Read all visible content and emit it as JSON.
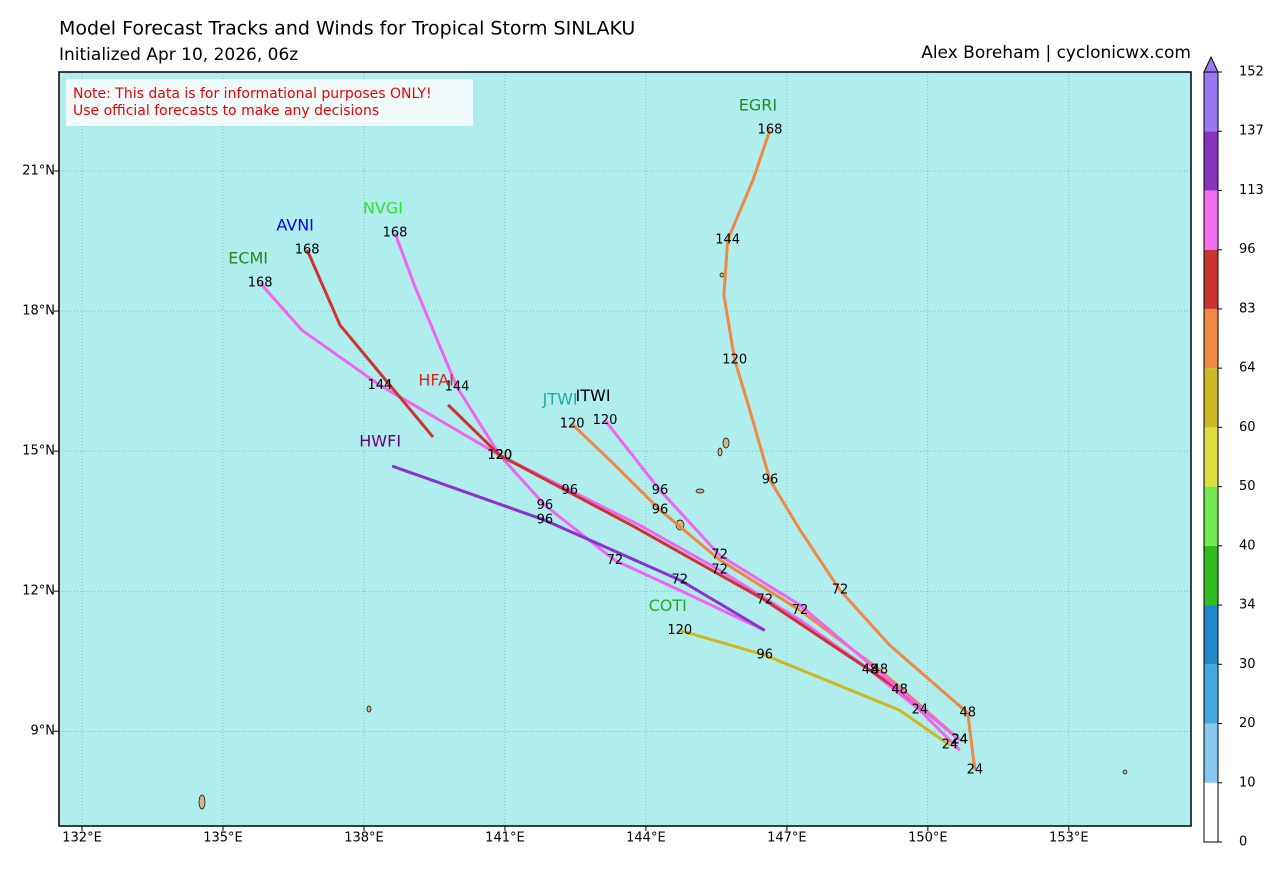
{
  "header": {
    "title": "Model Forecast Tracks and Winds for Tropical Storm SINLAKU",
    "subtitle": "Initialized Apr 10, 2026, 06z",
    "credit": "Alex Boreham | cyclonicwx.com"
  },
  "note": [
    "Note: This data is for informational purposes ONLY!",
    "Use official forecasts to make any decisions"
  ],
  "map": {
    "xlim": [
      131.51,
      155.6
    ],
    "ylim": [
      6.97,
      23.12
    ],
    "xticks": [
      {
        "value": 132,
        "label": "132°E"
      },
      {
        "value": 135,
        "label": "135°E"
      },
      {
        "value": 138,
        "label": "138°E"
      },
      {
        "value": 141,
        "label": "141°E"
      },
      {
        "value": 144,
        "label": "144°E"
      },
      {
        "value": 147,
        "label": "147°E"
      },
      {
        "value": 150,
        "label": "150°E"
      },
      {
        "value": 153,
        "label": "153°E"
      }
    ],
    "yticks": [
      {
        "value": 9,
        "label": "9°N"
      },
      {
        "value": 12,
        "label": "12°N"
      },
      {
        "value": 15,
        "label": "15°N"
      },
      {
        "value": 18,
        "label": "18°N"
      },
      {
        "value": 21,
        "label": "21°N"
      }
    ],
    "tracks": [
      {
        "name": "ECMI",
        "label_color": "#228822",
        "color": "#ee66ee",
        "lon": [
          135.79,
          136.68,
          138.34,
          140.89,
          142.38,
          143.87,
          145.57,
          147.28,
          148.77,
          149.83,
          150.68
        ],
        "lat": [
          18.6,
          17.59,
          16.41,
          14.91,
          14.16,
          13.41,
          12.45,
          11.38,
          10.31,
          9.45,
          8.59
        ],
        "hours": [
          168,
          null,
          144,
          120,
          96,
          null,
          72,
          null,
          48,
          24,
          null
        ]
      },
      {
        "name": "AVNI",
        "label_color": "#0000ee",
        "color": "#cc3333",
        "lon": [
          136.79,
          137.49,
          139.47
        ],
        "lat": [
          19.31,
          17.7,
          15.3
        ],
        "hours": [
          168,
          null,
          null
        ]
      },
      {
        "name": "NVGI",
        "label_color": "#33dd33",
        "color": "#ee66ee",
        "lon": [
          138.66,
          139.09,
          139.98,
          140.89,
          141.85,
          143.34,
          144.72,
          146.53
        ],
        "lat": [
          19.67,
          18.51,
          16.37,
          14.91,
          13.84,
          12.66,
          12.02,
          11.16
        ],
        "hours": [
          168,
          null,
          144,
          120,
          96,
          72,
          null,
          null
        ]
      },
      {
        "name": "HWFI",
        "label_color": "#660077",
        "color": "#8833cc",
        "lon": [
          138.6,
          141.85,
          144.72,
          146.53
        ],
        "lat": [
          14.68,
          13.52,
          12.24,
          11.16
        ],
        "hours": [
          null,
          96,
          72,
          null
        ]
      },
      {
        "name": "HFAI",
        "label_color": "#dd2222",
        "color": "#cc3333",
        "lon": [
          139.79,
          140.89,
          143.77,
          146.53,
          149.4,
          150.68
        ],
        "lat": [
          15.99,
          14.91,
          13.37,
          11.81,
          9.88,
          8.81
        ],
        "hours": [
          null,
          120,
          null,
          72,
          48,
          24
        ]
      },
      {
        "name": "JTWI",
        "label_color": "#22aaaa",
        "color": "#ee8844",
        "lon": [
          142.43,
          143.34,
          144.3,
          145.57,
          147.28,
          148.98,
          150.68
        ],
        "lat": [
          15.58,
          14.7,
          13.74,
          12.67,
          11.59,
          10.31,
          8.81
        ],
        "hours": [
          120,
          null,
          96,
          null,
          72,
          48,
          24
        ]
      },
      {
        "name": "ITWI",
        "label_color": "#000000",
        "color": "#ee66ee",
        "lon": [
          143.13,
          144.3,
          145.57,
          147.28,
          150.68
        ],
        "lat": [
          15.66,
          14.16,
          12.77,
          11.7,
          8.81
        ],
        "hours": [
          120,
          96,
          72,
          null,
          24
        ]
      },
      {
        "name": "EGRI",
        "label_color": "#228822",
        "color": "#ee8844",
        "lon": [
          146.64,
          146.28,
          145.74,
          145.66,
          145.89,
          146.21,
          146.64,
          147.28,
          148.13,
          149.19,
          150.85,
          151.0
        ],
        "lat": [
          21.88,
          20.81,
          19.52,
          18.34,
          16.95,
          15.88,
          14.38,
          13.31,
          12.02,
          10.84,
          9.39,
          8.17
        ],
        "hours": [
          168,
          null,
          144,
          null,
          120,
          null,
          96,
          null,
          72,
          null,
          48,
          24
        ]
      },
      {
        "name": "COTI",
        "label_color": "#22aa22",
        "color": "#ccb822",
        "lon": [
          144.72,
          146.53,
          149.4,
          150.47
        ],
        "lat": [
          11.16,
          10.63,
          9.45,
          8.7
        ],
        "hours": [
          120,
          96,
          null,
          24
        ]
      }
    ]
  },
  "colorbar": {
    "levels": [
      0,
      10,
      20,
      30,
      34,
      40,
      50,
      60,
      64,
      83,
      96,
      113,
      137,
      152
    ],
    "colors": [
      "#ffffff",
      "#88c8f0",
      "#44aadd",
      "#2288cc",
      "#33bb22",
      "#77e855",
      "#dddd44",
      "#ccb822",
      "#ee8844",
      "#cc3333",
      "#f070f0",
      "#8833bb",
      "#9977ee"
    ]
  }
}
